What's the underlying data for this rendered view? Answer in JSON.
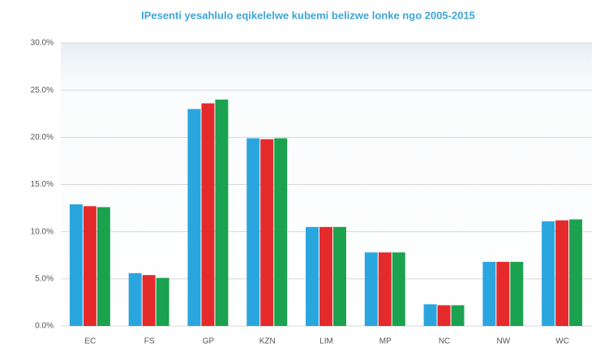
{
  "chart_data": {
    "type": "bar",
    "title": "IPesenti yesahlulo  eqikelelwe kubemi belizwe lonke ngo 2005-2015",
    "categories": [
      "EC",
      "FS",
      "GP",
      "KZN",
      "LIM",
      "MP",
      "NC",
      "NW",
      "WC"
    ],
    "series": [
      {
        "color": "#2aa6df",
        "values": [
          12.9,
          5.6,
          23.0,
          19.9,
          10.5,
          7.8,
          2.3,
          6.8,
          11.1
        ]
      },
      {
        "color": "#e52a2c",
        "values": [
          12.7,
          5.4,
          23.6,
          19.8,
          10.5,
          7.8,
          2.2,
          6.8,
          11.2
        ]
      },
      {
        "color": "#1ba24f",
        "values": [
          12.6,
          5.1,
          24.0,
          19.9,
          10.5,
          7.8,
          2.2,
          6.8,
          11.3
        ]
      }
    ],
    "ylim": [
      0,
      30
    ],
    "yticks": [
      {
        "value": 0,
        "label": "0.0%"
      },
      {
        "value": 5,
        "label": "5.0%"
      },
      {
        "value": 10,
        "label": "10.0%"
      },
      {
        "value": 15,
        "label": "15.0%"
      },
      {
        "value": 20,
        "label": "20.0%"
      },
      {
        "value": 25,
        "label": "25.0%"
      },
      {
        "value": 30,
        "label": "30.0%"
      }
    ],
    "grid": true
  }
}
